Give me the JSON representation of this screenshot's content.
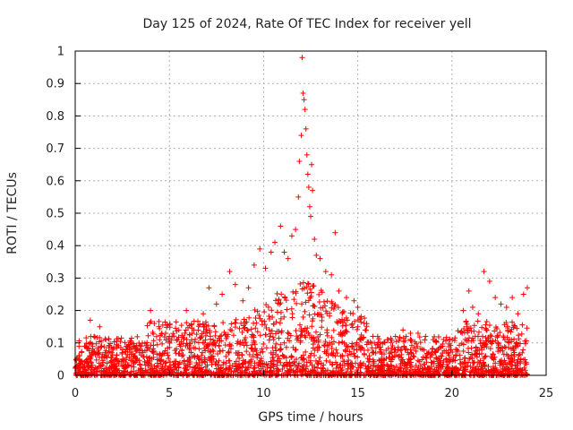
{
  "chart_data": {
    "type": "scatter",
    "title": "Day 125 of 2024, Rate Of TEC Index for receiver yell",
    "xlabel": "GPS time / hours",
    "ylabel": "ROTI / TECUs",
    "xlim": [
      0,
      25
    ],
    "ylim": [
      0,
      1
    ],
    "xticks": [
      0,
      5,
      10,
      15,
      20,
      25
    ],
    "yticks": [
      0,
      0.1,
      0.2,
      0.3,
      0.4,
      0.5,
      0.6,
      0.7,
      0.8,
      0.9,
      1
    ],
    "grid": true,
    "marker": "+",
    "color": "#ff0000",
    "series": [
      {
        "name": "ROTI",
        "points": [
          [
            0.2,
            0.06
          ],
          [
            0.5,
            0.09
          ],
          [
            0.8,
            0.17
          ],
          [
            1.0,
            0.12
          ],
          [
            1.3,
            0.15
          ],
          [
            1.6,
            0.07
          ],
          [
            2.0,
            0.08
          ],
          [
            2.5,
            0.07
          ],
          [
            3.0,
            0.08
          ],
          [
            3.5,
            0.09
          ],
          [
            4.0,
            0.2
          ],
          [
            4.2,
            0.16
          ],
          [
            4.6,
            0.13
          ],
          [
            5.0,
            0.12
          ],
          [
            5.5,
            0.14
          ],
          [
            5.9,
            0.2
          ],
          [
            6.3,
            0.14
          ],
          [
            6.8,
            0.19
          ],
          [
            7.1,
            0.27
          ],
          [
            7.5,
            0.22
          ],
          [
            7.8,
            0.25
          ],
          [
            8.2,
            0.32
          ],
          [
            8.5,
            0.28
          ],
          [
            8.9,
            0.23
          ],
          [
            9.2,
            0.27
          ],
          [
            9.5,
            0.34
          ],
          [
            9.8,
            0.39
          ],
          [
            10.1,
            0.33
          ],
          [
            10.4,
            0.38
          ],
          [
            10.6,
            0.41
          ],
          [
            10.9,
            0.46
          ],
          [
            11.1,
            0.38
          ],
          [
            11.3,
            0.36
          ],
          [
            11.5,
            0.43
          ],
          [
            11.7,
            0.45
          ],
          [
            11.85,
            0.55
          ],
          [
            11.9,
            0.66
          ],
          [
            12.0,
            0.74
          ],
          [
            12.05,
            0.98
          ],
          [
            12.1,
            0.87
          ],
          [
            12.15,
            0.85
          ],
          [
            12.2,
            0.82
          ],
          [
            12.25,
            0.76
          ],
          [
            12.3,
            0.68
          ],
          [
            12.35,
            0.62
          ],
          [
            12.4,
            0.58
          ],
          [
            12.45,
            0.52
          ],
          [
            12.5,
            0.49
          ],
          [
            12.55,
            0.65
          ],
          [
            12.6,
            0.57
          ],
          [
            12.7,
            0.42
          ],
          [
            12.8,
            0.37
          ],
          [
            13.0,
            0.36
          ],
          [
            13.3,
            0.32
          ],
          [
            13.6,
            0.31
          ],
          [
            13.8,
            0.44
          ],
          [
            14.0,
            0.26
          ],
          [
            14.4,
            0.24
          ],
          [
            14.8,
            0.23
          ],
          [
            15.0,
            0.21
          ],
          [
            15.4,
            0.14
          ],
          [
            15.8,
            0.12
          ],
          [
            16.2,
            0.1
          ],
          [
            16.6,
            0.11
          ],
          [
            17.0,
            0.12
          ],
          [
            17.4,
            0.14
          ],
          [
            17.8,
            0.13
          ],
          [
            18.2,
            0.13
          ],
          [
            18.6,
            0.12
          ],
          [
            19.0,
            0.11
          ],
          [
            19.4,
            0.06
          ],
          [
            19.8,
            0.07
          ],
          [
            20.2,
            0.08
          ],
          [
            20.6,
            0.2
          ],
          [
            20.9,
            0.26
          ],
          [
            21.1,
            0.21
          ],
          [
            21.4,
            0.19
          ],
          [
            21.7,
            0.32
          ],
          [
            22.0,
            0.29
          ],
          [
            22.3,
            0.24
          ],
          [
            22.6,
            0.22
          ],
          [
            22.9,
            0.21
          ],
          [
            23.2,
            0.24
          ],
          [
            23.5,
            0.19
          ],
          [
            23.8,
            0.25
          ],
          [
            24.0,
            0.27
          ]
        ]
      }
    ]
  }
}
